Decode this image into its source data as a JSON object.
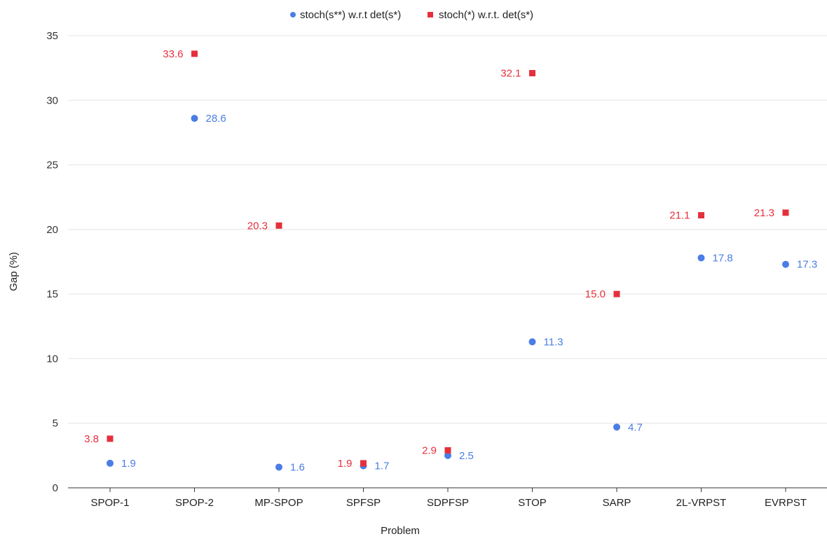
{
  "chart_data": {
    "type": "scatter",
    "xlabel": "Problem",
    "ylabel": "Gap (%)",
    "categories": [
      "SPOP-1",
      "SPOP-2",
      "MP-SPOP",
      "SPFSP",
      "SDPFSP",
      "STOP",
      "SARP",
      "2L-VRPST",
      "EVRPST"
    ],
    "ylim": [
      0,
      35
    ],
    "yticks": [
      0,
      5,
      10,
      15,
      20,
      25,
      30,
      35
    ],
    "grid": true,
    "legend_position": "top-center",
    "series": [
      {
        "name": "stoch(s**) w.r.t det(s*)",
        "marker": "circle",
        "color": "#4a7de6",
        "label_side": "right",
        "values": [
          1.9,
          28.6,
          1.6,
          1.7,
          2.5,
          11.3,
          4.7,
          17.8,
          17.3
        ],
        "labels": [
          "1.9",
          "28.6",
          "1.6",
          "1.7",
          "2.5",
          "11.3",
          "4.7",
          "17.8",
          "17.3"
        ]
      },
      {
        "name": "stoch(*) w.r.t. det(s*)",
        "marker": "square",
        "color": "#e5303c",
        "label_side": "left",
        "values": [
          3.8,
          33.6,
          20.3,
          1.9,
          2.9,
          32.1,
          15.0,
          21.1,
          21.3
        ],
        "labels": [
          "3.8",
          "33.6",
          "20.3",
          "1.9",
          "2.9",
          "32.1",
          "15.0",
          "21.1",
          "21.3"
        ]
      }
    ]
  }
}
